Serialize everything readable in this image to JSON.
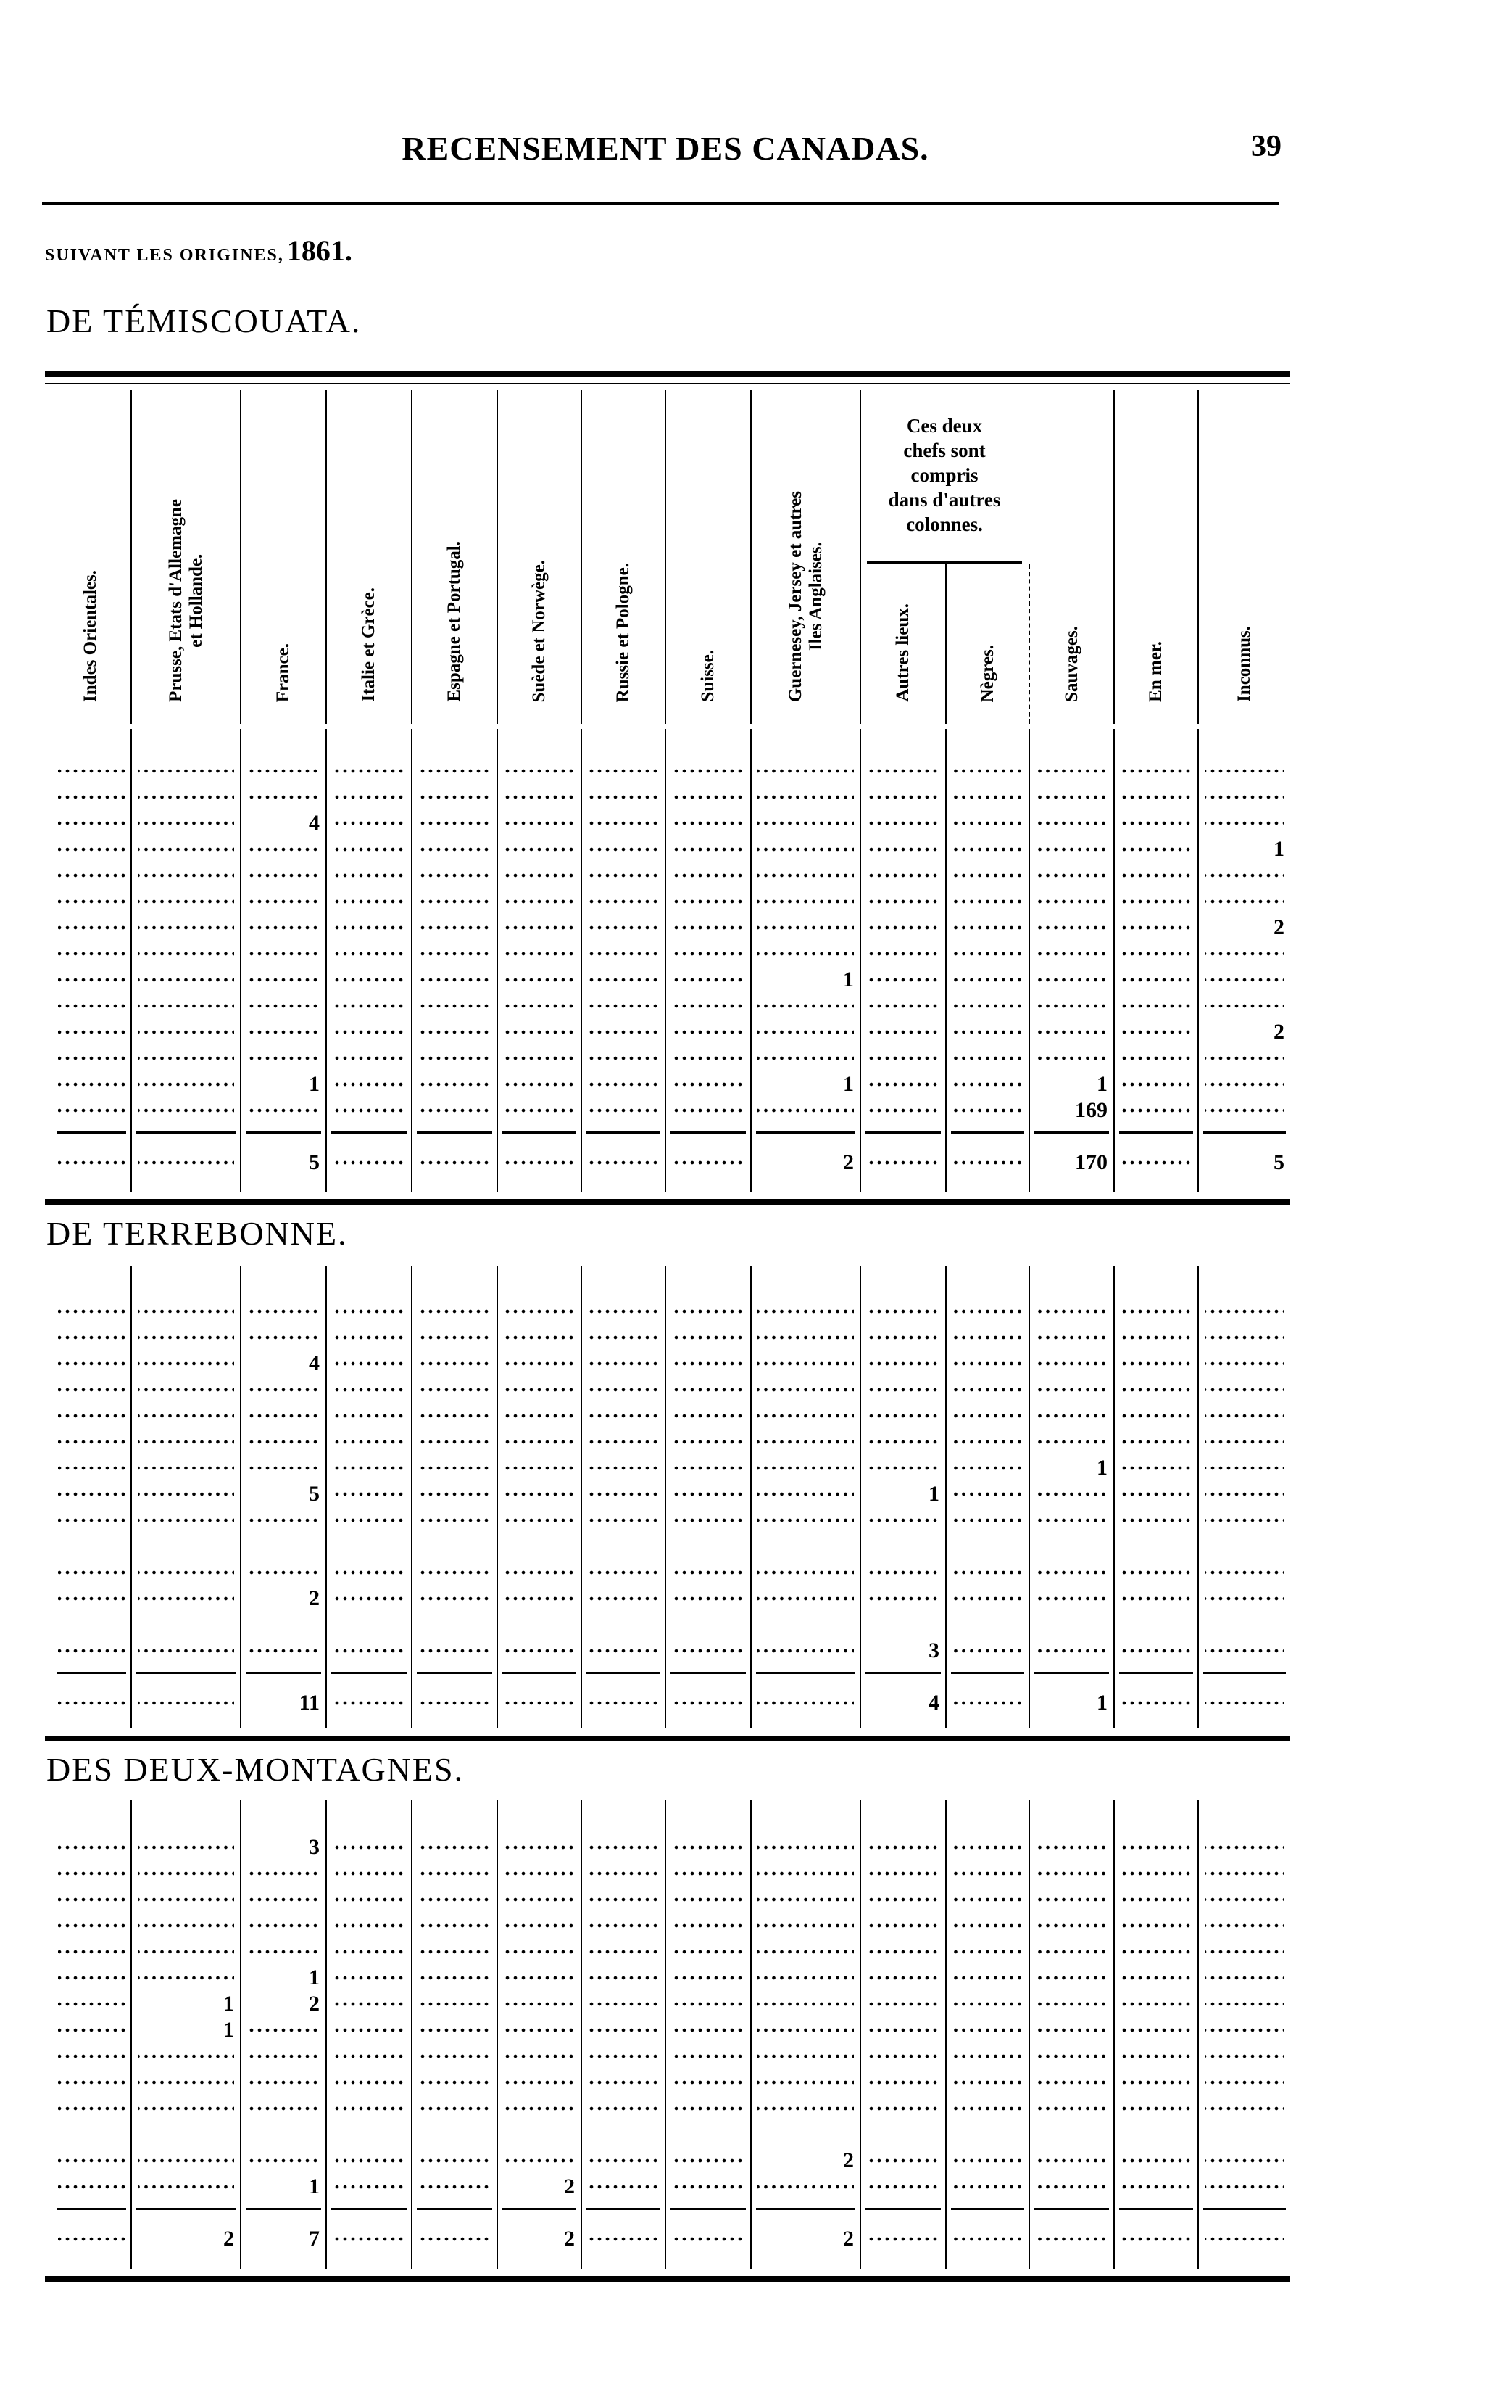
{
  "header": {
    "running_title": "RECENSEMENT DES CANADAS.",
    "page_number": "39",
    "subtitle_caps": "SUIVANT LES ORIGINES,",
    "subtitle_year": "1861."
  },
  "columns": [
    {
      "label": "Indes Orientales."
    },
    {
      "label": "Prusse, Etats d'Allemagne\net Hollande."
    },
    {
      "label": "France."
    },
    {
      "label": "Italie et Grèce."
    },
    {
      "label": "Espagne et Portugal."
    },
    {
      "label": "Suède et Norwège."
    },
    {
      "label": "Russie et Pologne."
    },
    {
      "label": "Suisse."
    },
    {
      "label": "Guernesey, Jersey et autres\nIles Anglaises."
    },
    {
      "label": "Autres lieux."
    },
    {
      "label": "Nègres."
    },
    {
      "label": "Sauvages."
    },
    {
      "label": "En mer."
    },
    {
      "label": "Inconnus."
    }
  ],
  "group_note": "Ces deux\nchefs sont\ncompris\ndans d'autres\ncolonnes.",
  "sections": [
    {
      "title": "DE TÉMISCOUATA.",
      "rows": [
        [
          "",
          "",
          "",
          "",
          "",
          "",
          "",
          "",
          "",
          "",
          "",
          "",
          "",
          ""
        ],
        [
          "",
          "",
          "",
          "",
          "",
          "",
          "",
          "",
          "",
          "",
          "",
          "",
          "",
          ""
        ],
        [
          "",
          "",
          "4",
          "",
          "",
          "",
          "",
          "",
          "",
          "",
          "",
          "",
          "",
          ""
        ],
        [
          "",
          "",
          "",
          "",
          "",
          "",
          "",
          "",
          "",
          "",
          "",
          "",
          "",
          "1"
        ],
        [
          "",
          "",
          "",
          "",
          "",
          "",
          "",
          "",
          "",
          "",
          "",
          "",
          "",
          ""
        ],
        [
          "",
          "",
          "",
          "",
          "",
          "",
          "",
          "",
          "",
          "",
          "",
          "",
          "",
          ""
        ],
        [
          "",
          "",
          "",
          "",
          "",
          "",
          "",
          "",
          "",
          "",
          "",
          "",
          "",
          "2"
        ],
        [
          "",
          "",
          "",
          "",
          "",
          "",
          "",
          "",
          "",
          "",
          "",
          "",
          "",
          ""
        ],
        [
          "",
          "",
          "",
          "",
          "",
          "",
          "",
          "",
          "1",
          "",
          "",
          "",
          "",
          ""
        ],
        [
          "",
          "",
          "",
          "",
          "",
          "",
          "",
          "",
          "",
          "",
          "",
          "",
          "",
          ""
        ],
        [
          "",
          "",
          "",
          "",
          "",
          "",
          "",
          "",
          "",
          "",
          "",
          "",
          "",
          "2"
        ],
        [
          "",
          "",
          "",
          "",
          "",
          "",
          "",
          "",
          "",
          "",
          "",
          "",
          "",
          ""
        ],
        [
          "",
          "",
          "1",
          "",
          "",
          "",
          "",
          "",
          "1",
          "",
          "",
          "1",
          "",
          ""
        ],
        [
          "",
          "",
          "",
          "",
          "",
          "",
          "",
          "",
          "",
          "",
          "",
          "169",
          "",
          ""
        ]
      ],
      "total": [
        "",
        "",
        "5",
        "",
        "",
        "",
        "",
        "",
        "2",
        "",
        "",
        "170",
        "",
        "5"
      ]
    },
    {
      "title": "DE TERREBONNE.",
      "rows": [
        [
          "",
          "",
          "",
          "",
          "",
          "",
          "",
          "",
          "",
          "",
          "",
          "",
          "",
          ""
        ],
        [
          "",
          "",
          "",
          "",
          "",
          "",
          "",
          "",
          "",
          "",
          "",
          "",
          "",
          ""
        ],
        [
          "",
          "",
          "4",
          "",
          "",
          "",
          "",
          "",
          "",
          "",
          "",
          "",
          "",
          ""
        ],
        [
          "",
          "",
          "",
          "",
          "",
          "",
          "",
          "",
          "",
          "",
          "",
          "",
          "",
          ""
        ],
        [
          "",
          "",
          "",
          "",
          "",
          "",
          "",
          "",
          "",
          "",
          "",
          "",
          "",
          ""
        ],
        [
          "",
          "",
          "",
          "",
          "",
          "",
          "",
          "",
          "",
          "",
          "",
          "",
          "",
          ""
        ],
        [
          "",
          "",
          "",
          "",
          "",
          "",
          "",
          "",
          "",
          "",
          "",
          "1",
          "",
          ""
        ],
        [
          "",
          "",
          "5",
          "",
          "",
          "",
          "",
          "",
          "",
          "1",
          "",
          "",
          "",
          ""
        ],
        [
          "",
          "",
          "",
          "",
          "",
          "",
          "",
          "",
          "",
          "",
          "",
          "",
          "",
          ""
        ],
        null,
        [
          "",
          "",
          "",
          "",
          "",
          "",
          "",
          "",
          "",
          "",
          "",
          "",
          "",
          ""
        ],
        [
          "",
          "",
          "2",
          "",
          "",
          "",
          "",
          "",
          "",
          "",
          "",
          "",
          "",
          ""
        ],
        null,
        [
          "",
          "",
          "",
          "",
          "",
          "",
          "",
          "",
          "",
          "3",
          "",
          "",
          "",
          ""
        ]
      ],
      "total": [
        "",
        "",
        "11",
        "",
        "",
        "",
        "",
        "",
        "",
        "4",
        "",
        "1",
        "",
        ""
      ]
    },
    {
      "title": "DES DEUX-MONTAGNES.",
      "rows": [
        [
          "",
          "",
          "3",
          "",
          "",
          "",
          "",
          "",
          "",
          "",
          "",
          "",
          "",
          ""
        ],
        [
          "",
          "",
          "",
          "",
          "",
          "",
          "",
          "",
          "",
          "",
          "",
          "",
          "",
          ""
        ],
        [
          "",
          "",
          "",
          "",
          "",
          "",
          "",
          "",
          "",
          "",
          "",
          "",
          "",
          ""
        ],
        [
          "",
          "",
          "",
          "",
          "",
          "",
          "",
          "",
          "",
          "",
          "",
          "",
          "",
          ""
        ],
        [
          "",
          "",
          "",
          "",
          "",
          "",
          "",
          "",
          "",
          "",
          "",
          "",
          "",
          ""
        ],
        [
          "",
          "",
          "1",
          "",
          "",
          "",
          "",
          "",
          "",
          "",
          "",
          "",
          "",
          ""
        ],
        [
          "",
          "1",
          "2",
          "",
          "",
          "",
          "",
          "",
          "",
          "",
          "",
          "",
          "",
          ""
        ],
        [
          "",
          "1",
          "",
          "",
          "",
          "",
          "",
          "",
          "",
          "",
          "",
          "",
          "",
          ""
        ],
        [
          "",
          "",
          "",
          "",
          "",
          "",
          "",
          "",
          "",
          "",
          "",
          "",
          "",
          ""
        ],
        [
          "",
          "",
          "",
          "",
          "",
          "",
          "",
          "",
          "",
          "",
          "",
          "",
          "",
          ""
        ],
        [
          "",
          "",
          "",
          "",
          "",
          "",
          "",
          "",
          "",
          "",
          "",
          "",
          "",
          ""
        ],
        null,
        [
          "",
          "",
          "",
          "",
          "",
          "",
          "",
          "",
          "2",
          "",
          "",
          "",
          "",
          ""
        ],
        [
          "",
          "",
          "1",
          "",
          "",
          "2",
          "",
          "",
          "",
          "",
          "",
          "",
          "",
          ""
        ]
      ],
      "total": [
        "",
        "2",
        "7",
        "",
        "",
        "2",
        "",
        "",
        "2",
        "",
        "",
        "",
        "",
        ""
      ]
    }
  ]
}
